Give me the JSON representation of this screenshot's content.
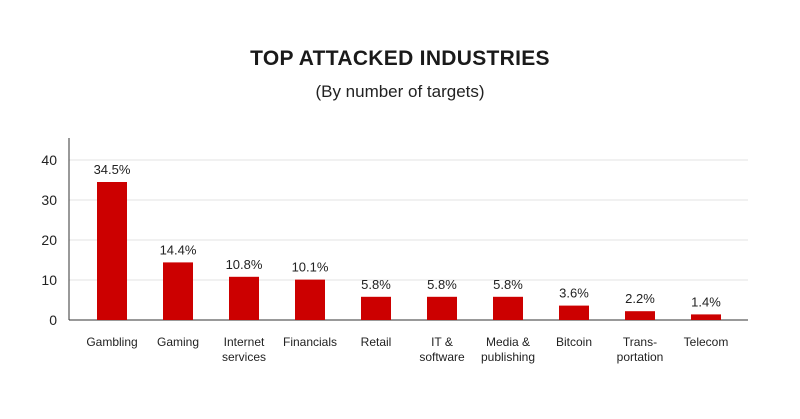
{
  "chart_data": {
    "type": "bar",
    "title": "TOP ATTACKED INDUSTRIES",
    "subtitle": "(By number of targets)",
    "xlabel": "",
    "ylabel": "",
    "ylim": [
      0,
      40
    ],
    "yticks": [
      "0",
      "10",
      "20",
      "30",
      "40"
    ],
    "grid": true,
    "bar_color": "#cc0000",
    "categories": [
      [
        "Gambling"
      ],
      [
        "Gaming"
      ],
      [
        "Internet",
        "services"
      ],
      [
        "Financials"
      ],
      [
        "Retail"
      ],
      [
        "IT &",
        "software"
      ],
      [
        "Media &",
        "publishing"
      ],
      [
        "Bitcoin"
      ],
      [
        "Trans-",
        "portation"
      ],
      [
        "Telecom"
      ]
    ],
    "values": [
      34.5,
      14.4,
      10.8,
      10.1,
      5.8,
      5.8,
      5.8,
      3.6,
      2.2,
      1.4
    ],
    "data_labels": [
      "34.5%",
      "14.4%",
      "10.8%",
      "10.1%",
      "5.8%",
      "5.8%",
      "5.8%",
      "3.6%",
      "2.2%",
      "1.4%"
    ]
  }
}
